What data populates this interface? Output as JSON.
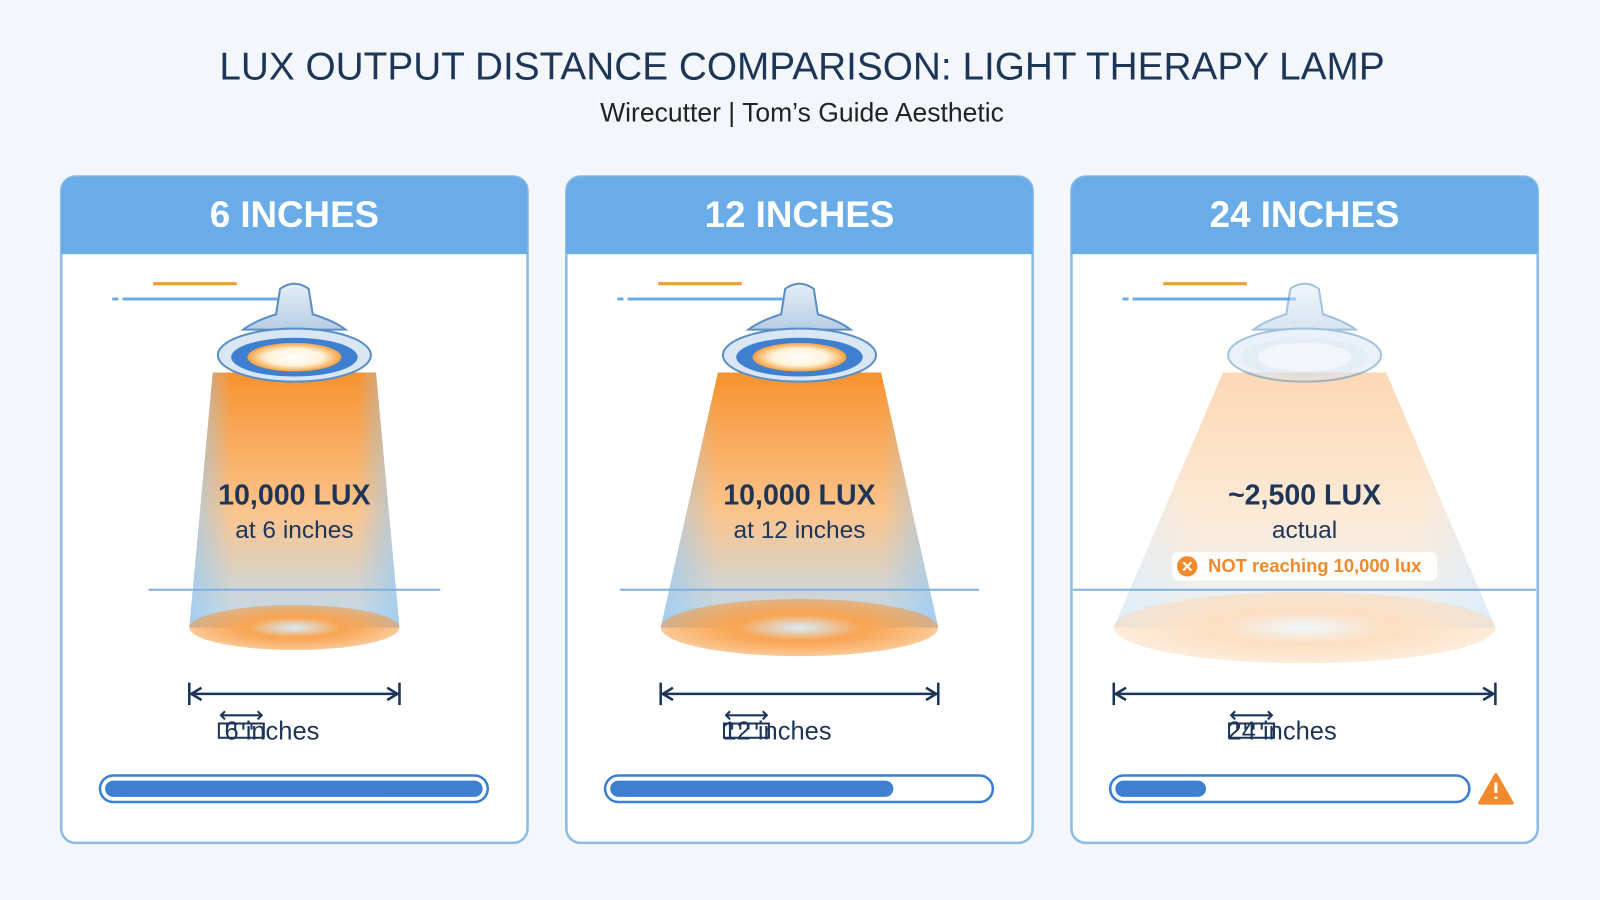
{
  "header": {
    "title": "LUX OUTPUT DISTANCE COMPARISON: LIGHT THERAPY LAMP",
    "subtitle": "Wirecutter | Tom’s Guide Aesthetic"
  },
  "panels": [
    {
      "heading": "6 INCHES",
      "lux": "10,000 LUX",
      "note": "at 6 inches",
      "distance": "6 inches"
    },
    {
      "heading": "12 INCHES",
      "lux": "10,000 LUX",
      "note": "at 12 inches",
      "distance": "12 inches"
    },
    {
      "heading": "24 INCHES",
      "lux": "~2,500 LUX",
      "note": "actual",
      "warning": "NOT reaching 10,000 lux",
      "distance": "24 inches"
    }
  ]
}
